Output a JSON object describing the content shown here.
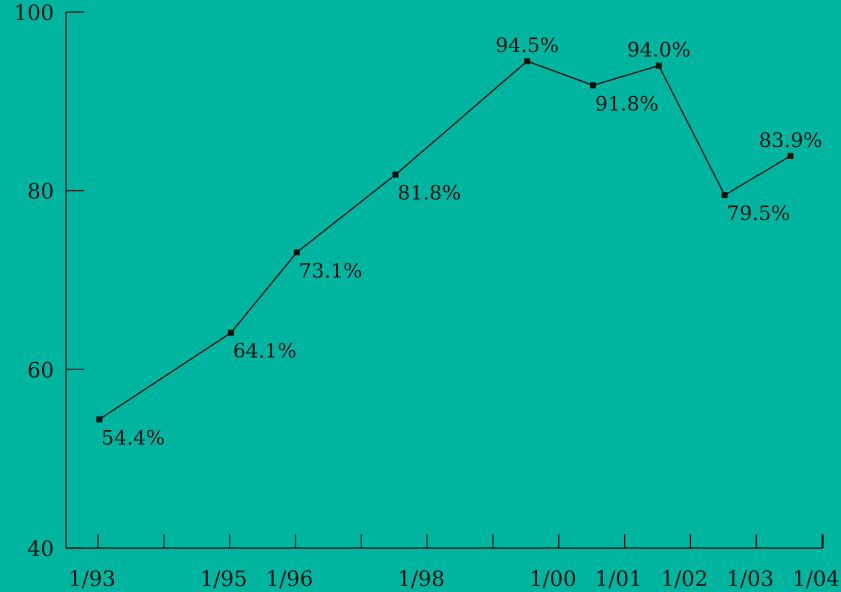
{
  "colors": {
    "background": "#00b5a0",
    "ink": "#111111"
  },
  "chart_data": {
    "type": "line",
    "title": "",
    "xlabel": "",
    "ylabel": "",
    "ylim": [
      40,
      100
    ],
    "yticks": [
      40,
      60,
      80,
      100
    ],
    "ytick_labels": [
      "40",
      "60",
      "80",
      "100"
    ],
    "xlim": [
      1993,
      2004.5
    ],
    "xticks": [
      1993,
      1994,
      1995,
      1996,
      1997,
      1998,
      1999,
      2000,
      2001,
      2002,
      2003,
      2004
    ],
    "xtick_labels": [
      {
        "at": 1993,
        "label": "1/93"
      },
      {
        "at": 1995,
        "label": "1/95"
      },
      {
        "at": 1996,
        "label": "1/96"
      },
      {
        "at": 1998,
        "label": "1/98"
      },
      {
        "at": 2000,
        "label": "1/00"
      },
      {
        "at": 2001,
        "label": "1/01"
      },
      {
        "at": 2002,
        "label": "1/02"
      },
      {
        "at": 2003,
        "label": "1/03"
      },
      {
        "at": 2004,
        "label": "1/04"
      }
    ],
    "grid": false,
    "legend": "none",
    "series": [
      {
        "points": [
          {
            "x": 1993.05,
            "y": 54.4,
            "label": "54.4%",
            "label_pos": "below"
          },
          {
            "x": 1995.05,
            "y": 64.1,
            "label": "64.1%",
            "label_pos": "below"
          },
          {
            "x": 1996.05,
            "y": 73.1,
            "label": "73.1%",
            "label_pos": "below"
          },
          {
            "x": 1997.55,
            "y": 81.8,
            "label": "81.8%",
            "label_pos": "below"
          },
          {
            "x": 1999.55,
            "y": 94.5,
            "label": "94.5%",
            "label_pos": "above"
          },
          {
            "x": 2000.55,
            "y": 91.8,
            "label": "91.8%",
            "label_pos": "below"
          },
          {
            "x": 2001.55,
            "y": 94.0,
            "label": "94.0%",
            "label_pos": "above"
          },
          {
            "x": 2002.55,
            "y": 79.5,
            "label": "79.5%",
            "label_pos": "below"
          },
          {
            "x": 2003.55,
            "y": 83.9,
            "label": "83.9%",
            "label_pos": "above"
          }
        ]
      }
    ]
  }
}
